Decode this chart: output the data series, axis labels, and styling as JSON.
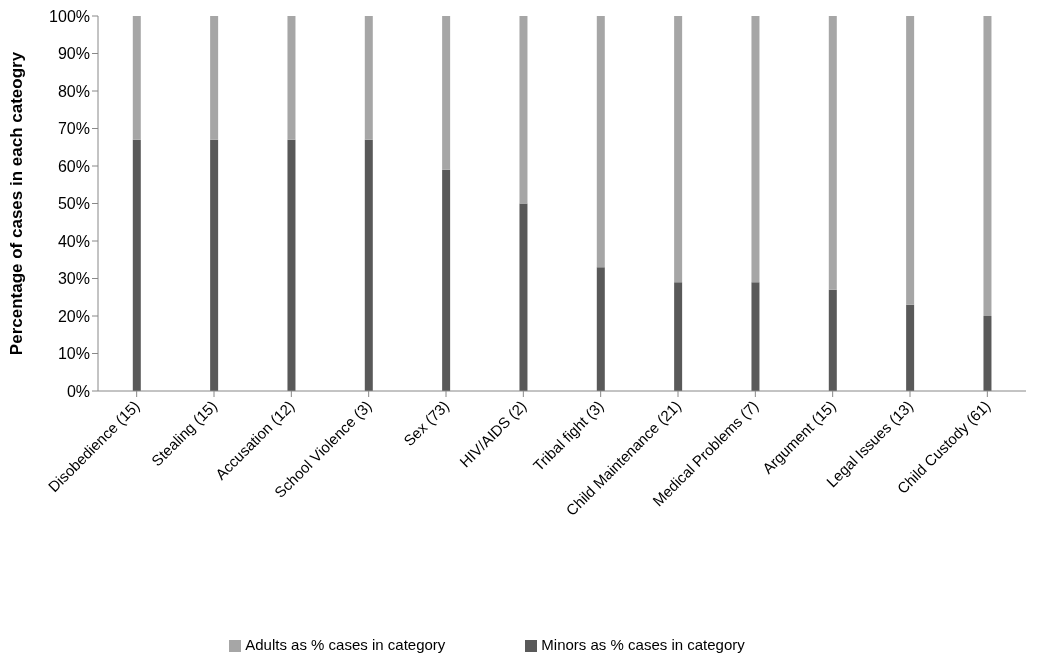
{
  "chart_data": {
    "type": "bar",
    "stacked": true,
    "ylabel": "Percentage of cases in each cateogry",
    "categories": [
      "Disobedience (15)",
      "Stealing (15)",
      "Accusation (12)",
      "School Violence (3)",
      "Sex (73)",
      "HIV/AIDS (2)",
      "Tribal  fight (3)",
      "Child Maintenance (21)",
      "Medical Problems (7)",
      "Argument (15)",
      "Legal Issues (13)",
      "Child Custody (61)"
    ],
    "series": [
      {
        "name": "Minors as % cases in category",
        "color": "#595959",
        "values": [
          67,
          67,
          67,
          67,
          59,
          50,
          33,
          29,
          29,
          27,
          23,
          20
        ]
      },
      {
        "name": "Adults as % cases in category",
        "color": "#a6a6a6",
        "values": [
          33,
          33,
          33,
          33,
          41,
          50,
          67,
          71,
          71,
          73,
          77,
          80
        ]
      }
    ],
    "ylim": [
      0,
      100
    ],
    "yticks": [
      {
        "value": 0,
        "label": "0%"
      },
      {
        "value": 10,
        "label": "10%"
      },
      {
        "value": 20,
        "label": "20%"
      },
      {
        "value": 30,
        "label": "30%"
      },
      {
        "value": 40,
        "label": "40%"
      },
      {
        "value": 50,
        "label": "50%"
      },
      {
        "value": 60,
        "label": "60%"
      },
      {
        "value": 70,
        "label": "70%"
      },
      {
        "value": 80,
        "label": "80%"
      },
      {
        "value": 90,
        "label": "90%"
      },
      {
        "value": 100,
        "label": "100%"
      }
    ],
    "grid": false,
    "legend": "bottom"
  }
}
